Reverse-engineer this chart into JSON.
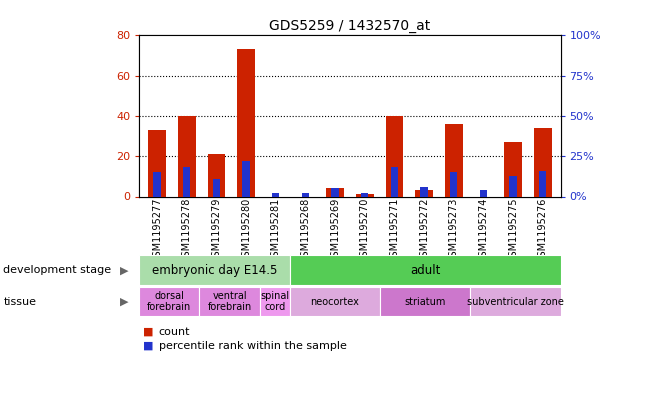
{
  "title": "GDS5259 / 1432570_at",
  "samples": [
    "GSM1195277",
    "GSM1195278",
    "GSM1195279",
    "GSM1195280",
    "GSM1195281",
    "GSM1195268",
    "GSM1195269",
    "GSM1195270",
    "GSM1195271",
    "GSM1195272",
    "GSM1195273",
    "GSM1195274",
    "GSM1195275",
    "GSM1195276"
  ],
  "counts": [
    33,
    40,
    21,
    73,
    0,
    0,
    4,
    1,
    40,
    3,
    36,
    0,
    27,
    34
  ],
  "percentiles": [
    15,
    18,
    11,
    22,
    2,
    2,
    5,
    2,
    18,
    6,
    15,
    4,
    13,
    16
  ],
  "ylim_left": [
    0,
    80
  ],
  "ylim_right": [
    0,
    100
  ],
  "yticks_left": [
    0,
    20,
    40,
    60,
    80
  ],
  "yticks_right": [
    0,
    25,
    50,
    75,
    100
  ],
  "ytick_labels_left": [
    "0",
    "20",
    "40",
    "60",
    "80"
  ],
  "ytick_labels_right": [
    "0%",
    "25%",
    "50%",
    "75%",
    "100%"
  ],
  "bar_color": "#cc2200",
  "percentile_color": "#2233cc",
  "tick_bg_color": "#c8c8c8",
  "development_stage_groups": [
    {
      "label": "embryonic day E14.5",
      "start": 0,
      "end": 5,
      "color": "#aaddaa"
    },
    {
      "label": "adult",
      "start": 5,
      "end": 14,
      "color": "#55cc55"
    }
  ],
  "tissue_groups": [
    {
      "label": "dorsal\nforebrain",
      "start": 0,
      "end": 2,
      "color": "#dd88dd"
    },
    {
      "label": "ventral\nforebrain",
      "start": 2,
      "end": 4,
      "color": "#dd88dd"
    },
    {
      "label": "spinal\ncord",
      "start": 4,
      "end": 5,
      "color": "#ee99ee"
    },
    {
      "label": "neocortex",
      "start": 5,
      "end": 8,
      "color": "#ddaadd"
    },
    {
      "label": "striatum",
      "start": 8,
      "end": 11,
      "color": "#cc77cc"
    },
    {
      "label": "subventricular zone",
      "start": 11,
      "end": 14,
      "color": "#ddaadd"
    }
  ],
  "legend_count_label": "count",
  "legend_percentile_label": "percentile rank within the sample",
  "dev_stage_label": "development stage",
  "tissue_label": "tissue"
}
